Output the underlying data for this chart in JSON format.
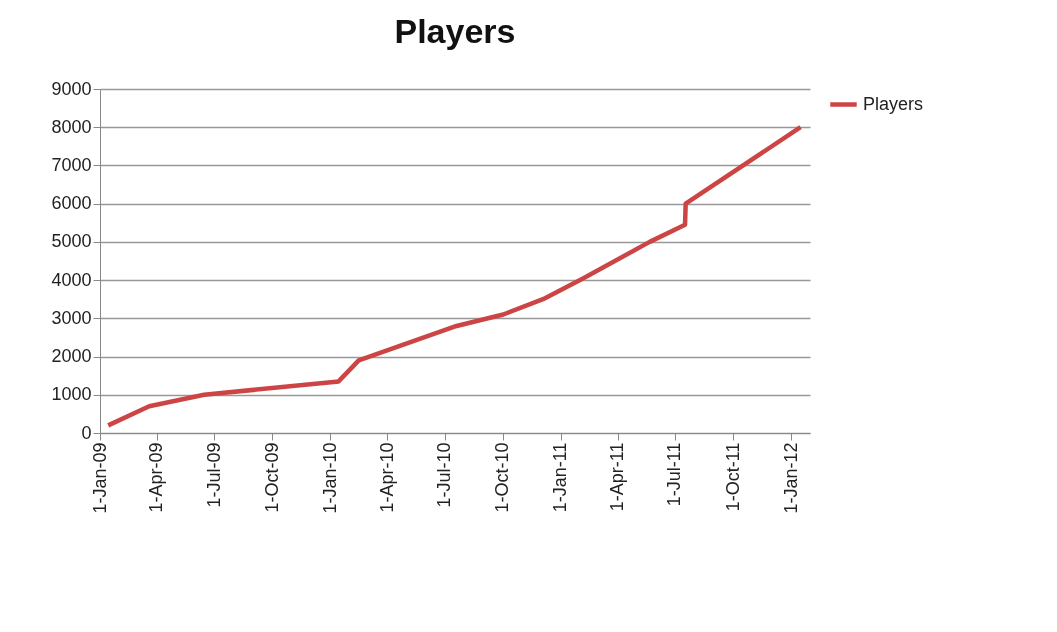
{
  "chart_data": {
    "type": "line",
    "title": "Players",
    "x": [
      "2009-01-14",
      "2009-03-20",
      "2009-06-15",
      "2010-01-14",
      "2010-02-15",
      "2010-07-20",
      "2010-10-02",
      "2010-12-04",
      "2011-02-06",
      "2011-05-22",
      "2011-07-17",
      "2011-07-18",
      "2012-01-16"
    ],
    "series": [
      {
        "name": "Players",
        "color": "#cc4444",
        "values": [
          200,
          700,
          1000,
          1350,
          1900,
          2800,
          3100,
          3500,
          4050,
          5000,
          5450,
          6000,
          8000
        ]
      }
    ],
    "xlim": [
      "2009-01-01",
      "2012-01-31"
    ],
    "xticks": [
      {
        "value": "2009-01-01",
        "label": "1-Jan-09"
      },
      {
        "value": "2009-04-01",
        "label": "1-Apr-09"
      },
      {
        "value": "2009-07-01",
        "label": "1-Jul-09"
      },
      {
        "value": "2009-10-01",
        "label": "1-Oct-09"
      },
      {
        "value": "2010-01-01",
        "label": "1-Jan-10"
      },
      {
        "value": "2010-04-01",
        "label": "1-Apr-10"
      },
      {
        "value": "2010-07-01",
        "label": "1-Jul-10"
      },
      {
        "value": "2010-10-01",
        "label": "1-Oct-10"
      },
      {
        "value": "2011-01-01",
        "label": "1-Jan-11"
      },
      {
        "value": "2011-04-01",
        "label": "1-Apr-11"
      },
      {
        "value": "2011-07-01",
        "label": "1-Jul-11"
      },
      {
        "value": "2011-10-01",
        "label": "1-Oct-11"
      },
      {
        "value": "2012-01-01",
        "label": "1-Jan-12"
      }
    ],
    "ylim": [
      0,
      9000
    ],
    "yticks": [
      0,
      1000,
      2000,
      3000,
      4000,
      5000,
      6000,
      7000,
      8000,
      9000
    ],
    "grid": "y",
    "legend": "right",
    "marker": "none",
    "line_style": "solid"
  }
}
